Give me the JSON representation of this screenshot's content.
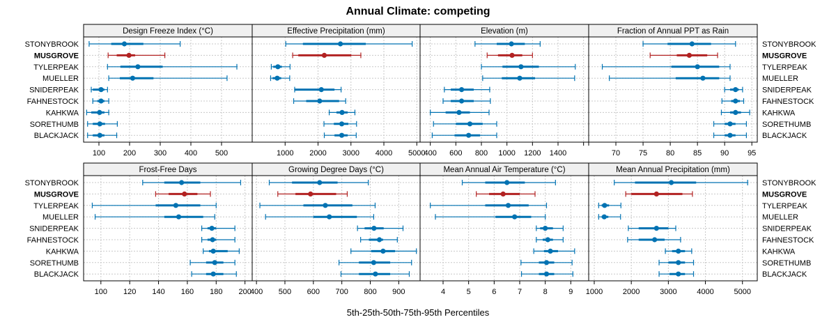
{
  "chart_data": {
    "type": "dotplot-percentiles",
    "title": "Annual Climate: competing",
    "xlabel": "5th-25th-50th-75th-95th Percentiles",
    "highlight": "MUSGROVE",
    "colors": {
      "default": "#0072B2",
      "highlight": "#B22222",
      "strip_bg": "#F0F0F0",
      "grid": "#C8C8C8"
    },
    "categories": [
      "STONYBROOK",
      "MUSGROVE",
      "TYLERPEAK",
      "MUELLER",
      "SNIDERPEAK",
      "FAHNESTOCK",
      "KAHKWA",
      "SORETHUMB",
      "BLACKJACK"
    ],
    "percentile_order": [
      "p5",
      "p25",
      "p50",
      "p75",
      "p95"
    ],
    "panels": [
      {
        "title": "Design Freeze Index (°C)",
        "xlim": [
          50,
          600
        ],
        "ticks": [
          100,
          200,
          300,
          400,
          500
        ],
        "tick_labels": [
          "100",
          "200",
          "300",
          "400",
          "500"
        ],
        "series": [
          [
            68,
            140,
            183,
            245,
            365
          ],
          [
            130,
            158,
            198,
            218,
            315
          ],
          [
            128,
            170,
            227,
            308,
            550
          ],
          [
            132,
            168,
            210,
            278,
            518
          ],
          [
            75,
            80,
            107,
            118,
            128
          ],
          [
            80,
            95,
            107,
            118,
            132
          ],
          [
            60,
            75,
            102,
            118,
            132
          ],
          [
            63,
            80,
            103,
            120,
            160
          ],
          [
            63,
            80,
            103,
            118,
            158
          ]
        ]
      },
      {
        "title": "Effective Precipitation (mm)",
        "xlim": [
          0,
          5100
        ],
        "ticks": [
          1000,
          2000,
          3000,
          4000,
          5000
        ],
        "tick_labels": [
          "1000",
          "2000",
          "3000",
          "4000",
          "5000"
        ],
        "series": [
          [
            1020,
            1540,
            2680,
            3450,
            4860
          ],
          [
            1230,
            1400,
            2190,
            3010,
            3300
          ],
          [
            580,
            640,
            780,
            900,
            1150
          ],
          [
            560,
            620,
            760,
            880,
            1140
          ],
          [
            1290,
            1300,
            2100,
            2500,
            2700
          ],
          [
            1260,
            1640,
            2050,
            2640,
            2840
          ],
          [
            2340,
            2560,
            2730,
            2900,
            3120
          ],
          [
            2180,
            2480,
            2720,
            2920,
            3170
          ],
          [
            2190,
            2500,
            2720,
            2900,
            3160
          ]
        ]
      },
      {
        "title": "Elevation (m)",
        "xlim": [
          320,
          1640
        ],
        "ticks": [
          400,
          600,
          800,
          1000,
          1200,
          1400,
          1600
        ],
        "tick_labels": [
          "400",
          "600",
          "800",
          "1000",
          "1200",
          "1400",
          ""
        ],
        "series": [
          [
            750,
            920,
            1035,
            1140,
            1260
          ],
          [
            845,
            930,
            1040,
            1120,
            1200
          ],
          [
            800,
            965,
            1110,
            1250,
            1535
          ],
          [
            810,
            960,
            1100,
            1220,
            1530
          ],
          [
            510,
            560,
            645,
            740,
            865
          ],
          [
            500,
            560,
            645,
            740,
            870
          ],
          [
            400,
            520,
            625,
            710,
            860
          ],
          [
            425,
            600,
            710,
            810,
            920
          ],
          [
            415,
            590,
            700,
            790,
            920
          ]
        ]
      },
      {
        "title": "Fraction of Annual PPT as Rain",
        "xlim": [
          65,
          96
        ],
        "ticks": [
          65,
          70,
          75,
          80,
          85,
          90,
          95
        ],
        "tick_labels": [
          "",
          "70",
          "75",
          "80",
          "85",
          "90",
          "95"
        ],
        "series": [
          [
            75,
            79.5,
            84,
            87.5,
            92
          ],
          [
            76.3,
            81.2,
            83.5,
            86.8,
            88.7
          ],
          [
            67.5,
            80.2,
            85,
            89,
            91
          ],
          [
            68.8,
            81,
            86,
            89,
            91
          ],
          [
            90,
            91,
            92,
            92.6,
            93.3
          ],
          [
            89.5,
            91.2,
            92,
            92.8,
            93.5
          ],
          [
            89.4,
            91,
            92,
            93,
            94.6
          ],
          [
            88,
            90,
            91,
            92,
            94
          ],
          [
            88,
            90,
            91,
            92,
            94
          ]
        ]
      },
      {
        "title": "Frost-Free Days",
        "xlim": [
          88,
          205
        ],
        "ticks": [
          100,
          120,
          140,
          160,
          180,
          200
        ],
        "tick_labels": [
          "100",
          "120",
          "140",
          "160",
          "180",
          "200"
        ],
        "series": [
          [
            129,
            144,
            156,
            169,
            197
          ],
          [
            138,
            147,
            158,
            167,
            176
          ],
          [
            94,
            138,
            152,
            169,
            180
          ],
          [
            96,
            144,
            154,
            171,
            179
          ],
          [
            170,
            174,
            177,
            180,
            193
          ],
          [
            170,
            174,
            177.5,
            180,
            193
          ],
          [
            171,
            175,
            178,
            188,
            196
          ],
          [
            162,
            173,
            179,
            185,
            193
          ],
          [
            163,
            173,
            178,
            185,
            194
          ]
        ]
      },
      {
        "title": "Growing Degree Days (°C)",
        "xlim": [
          385,
          975
        ],
        "ticks": [
          400,
          500,
          600,
          700,
          800,
          900
        ],
        "tick_labels": [
          "400",
          "500",
          "600",
          "700",
          "800",
          "900"
        ],
        "series": [
          [
            445,
            525,
            622,
            685,
            793
          ],
          [
            475,
            537,
            590,
            680,
            719
          ],
          [
            412,
            565,
            642,
            737,
            817
          ],
          [
            432,
            600,
            656,
            753,
            812
          ],
          [
            755,
            780,
            813,
            847,
            915
          ],
          [
            766,
            795,
            832,
            845,
            895
          ],
          [
            732,
            803,
            845,
            887,
            962
          ],
          [
            690,
            760,
            812,
            870,
            945
          ],
          [
            697,
            760,
            818,
            870,
            937
          ]
        ]
      },
      {
        "title": "Mean Annual Air Temperature (°C)",
        "xlim": [
          3.1,
          9.7
        ],
        "ticks": [
          4,
          5,
          6,
          7,
          8,
          9
        ],
        "tick_labels": [
          "4",
          "5",
          "6",
          "7",
          "8",
          "9"
        ],
        "series": [
          [
            4.75,
            5.65,
            6.5,
            7.2,
            8.4
          ],
          [
            5.3,
            5.8,
            6.35,
            7.0,
            7.6
          ],
          [
            3.5,
            5.65,
            6.55,
            7.35,
            8.05
          ],
          [
            3.7,
            6.05,
            6.8,
            7.45,
            8.0
          ],
          [
            7.65,
            7.8,
            8.0,
            8.3,
            8.7
          ],
          [
            7.65,
            7.9,
            8.1,
            8.3,
            8.7
          ],
          [
            7.55,
            7.95,
            8.2,
            8.5,
            9.15
          ],
          [
            7.05,
            7.75,
            8.05,
            8.35,
            9.05
          ],
          [
            7.07,
            7.75,
            8.05,
            8.35,
            9.08
          ]
        ]
      },
      {
        "title": "Mean Annual Precipitation (mm)",
        "xlim": [
          850,
          5400
        ],
        "ticks": [
          1000,
          2000,
          3000,
          4000,
          5000
        ],
        "tick_labels": [
          "1000",
          "2000",
          "3000",
          "4000",
          "5000"
        ],
        "series": [
          [
            1540,
            2100,
            3080,
            3750,
            5140
          ],
          [
            1850,
            2000,
            2680,
            3380,
            3650
          ],
          [
            1120,
            1200,
            1280,
            1400,
            1720
          ],
          [
            1120,
            1200,
            1270,
            1380,
            1710
          ],
          [
            1920,
            2200,
            2680,
            3000,
            3200
          ],
          [
            1900,
            2200,
            2630,
            2900,
            3330
          ],
          [
            2920,
            3100,
            3270,
            3450,
            3630
          ],
          [
            2750,
            3000,
            3270,
            3450,
            3680
          ],
          [
            2750,
            3030,
            3270,
            3450,
            3680
          ]
        ]
      }
    ]
  }
}
